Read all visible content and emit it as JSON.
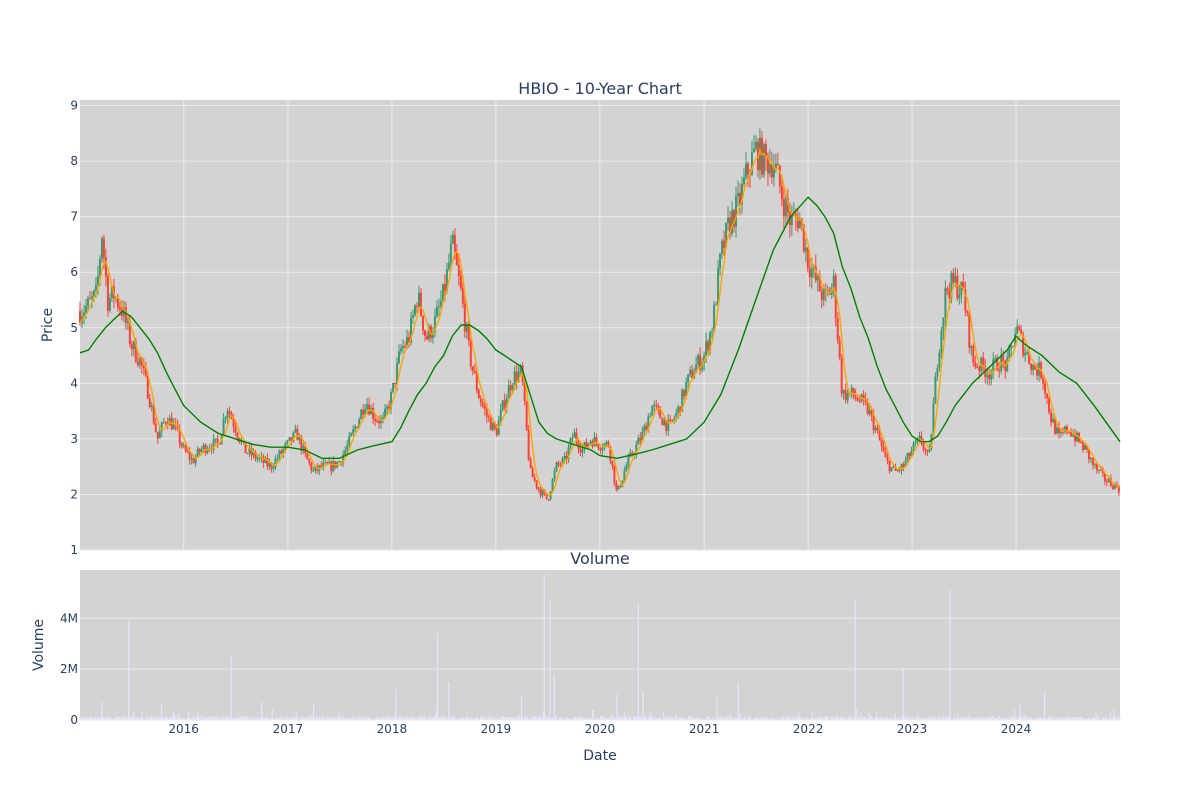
{
  "colors": {
    "plot_bg": "#d3d3d3",
    "grid": "#ebebeb",
    "text": "#2a3f5f",
    "up": "#3d9970",
    "down": "#ff4136",
    "ma_short": "#ffa500",
    "ma_long": "#008000",
    "volume_bar": "#e6e6fa"
  },
  "chart_data": [
    {
      "type": "candlestick",
      "title": "HBIO - 10-Year Chart",
      "xlabel": "",
      "ylabel": "Price",
      "x_range": [
        "2015-01-02",
        "2024-12-31"
      ],
      "ylim": [
        1,
        9.1
      ],
      "y_ticks": [
        1,
        2,
        3,
        4,
        5,
        6,
        7,
        8,
        9
      ],
      "x_tick_labels": [
        "2016",
        "2017",
        "2018",
        "2019",
        "2020",
        "2021",
        "2022",
        "2023",
        "2024"
      ],
      "grid": true,
      "series": [
        {
          "kind": "close_path",
          "points": [
            [
              "2015-01-02",
              5.3
            ],
            [
              "2015-02-01",
              5.4
            ],
            [
              "2015-03-01",
              5.6
            ],
            [
              "2015-03-20",
              6.7
            ],
            [
              "2015-04-10",
              5.5
            ],
            [
              "2015-05-01",
              5.6
            ],
            [
              "2015-06-01",
              5.3
            ],
            [
              "2015-07-01",
              4.7
            ],
            [
              "2015-08-01",
              4.4
            ],
            [
              "2015-09-01",
              3.8
            ],
            [
              "2015-10-01",
              3.0
            ],
            [
              "2015-11-01",
              3.4
            ],
            [
              "2015-12-01",
              3.2
            ],
            [
              "2016-01-01",
              2.8
            ],
            [
              "2016-02-01",
              2.6
            ],
            [
              "2016-03-01",
              2.8
            ],
            [
              "2016-04-01",
              2.9
            ],
            [
              "2016-05-01",
              2.9
            ],
            [
              "2016-06-01",
              3.6
            ],
            [
              "2016-07-01",
              3.2
            ],
            [
              "2016-08-01",
              2.8
            ],
            [
              "2016-09-01",
              2.7
            ],
            [
              "2016-10-01",
              2.6
            ],
            [
              "2016-11-01",
              2.5
            ],
            [
              "2016-12-01",
              2.7
            ],
            [
              "2017-01-01",
              2.9
            ],
            [
              "2017-02-01",
              3.1
            ],
            [
              "2017-03-01",
              2.7
            ],
            [
              "2017-04-01",
              2.4
            ],
            [
              "2017-05-01",
              2.5
            ],
            [
              "2017-06-01",
              2.5
            ],
            [
              "2017-07-01",
              2.6
            ],
            [
              "2017-08-01",
              2.9
            ],
            [
              "2017-09-01",
              3.3
            ],
            [
              "2017-10-01",
              3.7
            ],
            [
              "2017-11-01",
              3.4
            ],
            [
              "2017-12-01",
              3.3
            ],
            [
              "2018-01-01",
              3.8
            ],
            [
              "2018-02-01",
              4.6
            ],
            [
              "2018-03-01",
              4.8
            ],
            [
              "2018-04-01",
              5.6
            ],
            [
              "2018-05-01",
              4.8
            ],
            [
              "2018-06-01",
              5.1
            ],
            [
              "2018-07-01",
              5.6
            ],
            [
              "2018-08-01",
              6.5
            ],
            [
              "2018-09-01",
              5.6
            ],
            [
              "2018-10-01",
              4.5
            ],
            [
              "2018-11-01",
              3.8
            ],
            [
              "2018-12-01",
              3.4
            ],
            [
              "2019-01-01",
              3.1
            ],
            [
              "2019-02-01",
              3.7
            ],
            [
              "2019-03-01",
              4.1
            ],
            [
              "2019-04-01",
              4.2
            ],
            [
              "2019-05-01",
              2.4
            ],
            [
              "2019-06-01",
              2.1
            ],
            [
              "2019-07-01",
              1.9
            ],
            [
              "2019-08-01",
              2.5
            ],
            [
              "2019-09-01",
              2.6
            ],
            [
              "2019-10-01",
              3.1
            ],
            [
              "2019-11-01",
              2.8
            ],
            [
              "2019-12-01",
              3.0
            ],
            [
              "2020-01-01",
              2.9
            ],
            [
              "2020-02-01",
              2.9
            ],
            [
              "2020-03-01",
              2.0
            ],
            [
              "2020-04-01",
              2.5
            ],
            [
              "2020-05-01",
              2.8
            ],
            [
              "2020-06-01",
              3.1
            ],
            [
              "2020-07-01",
              3.6
            ],
            [
              "2020-08-01",
              3.4
            ],
            [
              "2020-09-01",
              3.2
            ],
            [
              "2020-10-01",
              3.5
            ],
            [
              "2020-11-01",
              4.0
            ],
            [
              "2020-12-01",
              4.3
            ],
            [
              "2021-01-01",
              4.5
            ],
            [
              "2021-02-01",
              5.1
            ],
            [
              "2021-03-01",
              6.3
            ],
            [
              "2021-04-01",
              6.9
            ],
            [
              "2021-05-01",
              7.2
            ],
            [
              "2021-06-01",
              7.8
            ],
            [
              "2021-07-01",
              8.2
            ],
            [
              "2021-08-01",
              8.0
            ],
            [
              "2021-09-01",
              8.0
            ],
            [
              "2021-10-01",
              7.4
            ],
            [
              "2021-11-01",
              6.9
            ],
            [
              "2021-12-01",
              7.0
            ],
            [
              "2022-01-01",
              6.2
            ],
            [
              "2022-02-01",
              5.8
            ],
            [
              "2022-03-01",
              5.5
            ],
            [
              "2022-04-01",
              5.8
            ],
            [
              "2022-05-01",
              3.8
            ],
            [
              "2022-06-01",
              3.8
            ],
            [
              "2022-07-01",
              3.7
            ],
            [
              "2022-08-01",
              3.5
            ],
            [
              "2022-09-01",
              3.1
            ],
            [
              "2022-10-01",
              2.6
            ],
            [
              "2022-11-01",
              2.4
            ],
            [
              "2022-12-01",
              2.5
            ],
            [
              "2023-01-01",
              2.8
            ],
            [
              "2023-02-01",
              3.0
            ],
            [
              "2023-03-01",
              2.6
            ],
            [
              "2023-04-01",
              4.5
            ],
            [
              "2023-05-01",
              5.7
            ],
            [
              "2023-06-01",
              5.8
            ],
            [
              "2023-07-01",
              5.6
            ],
            [
              "2023-08-01",
              4.4
            ],
            [
              "2023-09-01",
              4.3
            ],
            [
              "2023-10-01",
              4.2
            ],
            [
              "2023-11-01",
              4.4
            ],
            [
              "2023-12-01",
              4.3
            ],
            [
              "2024-01-01",
              5.0
            ],
            [
              "2024-02-01",
              4.6
            ],
            [
              "2024-03-01",
              4.3
            ],
            [
              "2024-04-01",
              4.2
            ],
            [
              "2024-05-01",
              3.4
            ],
            [
              "2024-06-01",
              3.0
            ],
            [
              "2024-07-01",
              3.2
            ],
            [
              "2024-08-01",
              3.0
            ],
            [
              "2024-09-01",
              2.8
            ],
            [
              "2024-10-01",
              2.5
            ],
            [
              "2024-11-01",
              2.3
            ],
            [
              "2024-12-31",
              2.1
            ]
          ]
        },
        {
          "kind": "line",
          "color_key": "ma_long",
          "points": [
            [
              "2015-01-02",
              4.55
            ],
            [
              "2015-02-01",
              4.6
            ],
            [
              "2015-03-01",
              4.8
            ],
            [
              "2015-04-01",
              5.0
            ],
            [
              "2015-05-01",
              5.15
            ],
            [
              "2015-06-01",
              5.3
            ],
            [
              "2015-07-01",
              5.2
            ],
            [
              "2015-08-01",
              5.0
            ],
            [
              "2015-09-01",
              4.8
            ],
            [
              "2015-10-01",
              4.55
            ],
            [
              "2015-11-01",
              4.2
            ],
            [
              "2015-12-01",
              3.9
            ],
            [
              "2016-01-01",
              3.6
            ],
            [
              "2016-03-01",
              3.3
            ],
            [
              "2016-05-01",
              3.1
            ],
            [
              "2016-07-01",
              3.0
            ],
            [
              "2016-09-01",
              2.9
            ],
            [
              "2016-11-01",
              2.85
            ],
            [
              "2017-01-01",
              2.85
            ],
            [
              "2017-03-01",
              2.8
            ],
            [
              "2017-05-01",
              2.65
            ],
            [
              "2017-07-01",
              2.65
            ],
            [
              "2017-09-01",
              2.8
            ],
            [
              "2017-11-01",
              2.88
            ],
            [
              "2018-01-01",
              2.95
            ],
            [
              "2018-02-01",
              3.2
            ],
            [
              "2018-03-01",
              3.5
            ],
            [
              "2018-04-01",
              3.8
            ],
            [
              "2018-05-01",
              4.0
            ],
            [
              "2018-06-01",
              4.3
            ],
            [
              "2018-07-01",
              4.5
            ],
            [
              "2018-08-01",
              4.85
            ],
            [
              "2018-09-01",
              5.05
            ],
            [
              "2018-10-01",
              5.05
            ],
            [
              "2018-11-01",
              4.95
            ],
            [
              "2018-12-01",
              4.8
            ],
            [
              "2019-01-01",
              4.6
            ],
            [
              "2019-02-01",
              4.5
            ],
            [
              "2019-03-01",
              4.4
            ],
            [
              "2019-04-01",
              4.3
            ],
            [
              "2019-05-01",
              3.8
            ],
            [
              "2019-06-01",
              3.3
            ],
            [
              "2019-07-01",
              3.1
            ],
            [
              "2019-08-01",
              3.0
            ],
            [
              "2019-09-01",
              2.95
            ],
            [
              "2019-10-01",
              2.9
            ],
            [
              "2019-11-01",
              2.85
            ],
            [
              "2019-12-01",
              2.8
            ],
            [
              "2020-01-01",
              2.7
            ],
            [
              "2020-03-01",
              2.65
            ],
            [
              "2020-05-01",
              2.72
            ],
            [
              "2020-07-01",
              2.8
            ],
            [
              "2020-09-01",
              2.9
            ],
            [
              "2020-11-01",
              3.0
            ],
            [
              "2021-01-01",
              3.3
            ],
            [
              "2021-03-01",
              3.8
            ],
            [
              "2021-05-01",
              4.6
            ],
            [
              "2021-07-01",
              5.5
            ],
            [
              "2021-09-01",
              6.4
            ],
            [
              "2021-11-01",
              7.0
            ],
            [
              "2022-01-01",
              7.35
            ],
            [
              "2022-02-01",
              7.2
            ],
            [
              "2022-03-01",
              7.0
            ],
            [
              "2022-04-01",
              6.7
            ],
            [
              "2022-05-01",
              6.1
            ],
            [
              "2022-06-01",
              5.7
            ],
            [
              "2022-07-01",
              5.2
            ],
            [
              "2022-08-01",
              4.8
            ],
            [
              "2022-09-01",
              4.3
            ],
            [
              "2022-10-01",
              3.9
            ],
            [
              "2022-11-01",
              3.6
            ],
            [
              "2022-12-01",
              3.3
            ],
            [
              "2023-01-01",
              3.05
            ],
            [
              "2023-02-01",
              2.95
            ],
            [
              "2023-03-01",
              2.95
            ],
            [
              "2023-04-01",
              3.05
            ],
            [
              "2023-05-01",
              3.3
            ],
            [
              "2023-06-01",
              3.6
            ],
            [
              "2023-08-01",
              4.0
            ],
            [
              "2023-10-01",
              4.3
            ],
            [
              "2023-12-01",
              4.6
            ],
            [
              "2024-01-01",
              4.85
            ],
            [
              "2024-02-01",
              4.7
            ],
            [
              "2024-04-01",
              4.5
            ],
            [
              "2024-06-01",
              4.2
            ],
            [
              "2024-08-01",
              4.0
            ],
            [
              "2024-10-01",
              3.6
            ],
            [
              "2024-12-31",
              2.95
            ]
          ]
        }
      ]
    },
    {
      "type": "bar",
      "title": "Volume",
      "xlabel": "Date",
      "ylabel": "Volume",
      "ylim": [
        0,
        5900000
      ],
      "y_ticks": [
        0,
        2000000,
        4000000
      ],
      "y_tick_labels": [
        "0",
        "2M",
        "4M"
      ],
      "x_tick_labels": [
        "2016",
        "2017",
        "2018",
        "2019",
        "2020",
        "2021",
        "2022",
        "2023",
        "2024"
      ],
      "grid": true,
      "spikes": [
        [
          "2015-03-20",
          700000
        ],
        [
          "2015-06-22",
          3900000
        ],
        [
          "2015-10-15",
          600000
        ],
        [
          "2016-06-15",
          2500000
        ],
        [
          "2016-10-01",
          700000
        ],
        [
          "2017-04-01",
          600000
        ],
        [
          "2018-01-15",
          1200000
        ],
        [
          "2018-06-10",
          3400000
        ],
        [
          "2018-07-20",
          1500000
        ],
        [
          "2019-04-01",
          900000
        ],
        [
          "2019-06-20",
          5700000
        ],
        [
          "2019-07-10",
          4700000
        ],
        [
          "2019-07-25",
          1800000
        ],
        [
          "2020-03-01",
          1000000
        ],
        [
          "2020-05-15",
          4600000
        ],
        [
          "2020-06-01",
          1100000
        ],
        [
          "2021-02-15",
          900000
        ],
        [
          "2021-05-01",
          1500000
        ],
        [
          "2022-06-15",
          4700000
        ],
        [
          "2022-12-01",
          2000000
        ],
        [
          "2023-05-15",
          5100000
        ],
        [
          "2024-01-15",
          600000
        ],
        [
          "2024-04-10",
          1100000
        ]
      ]
    }
  ]
}
